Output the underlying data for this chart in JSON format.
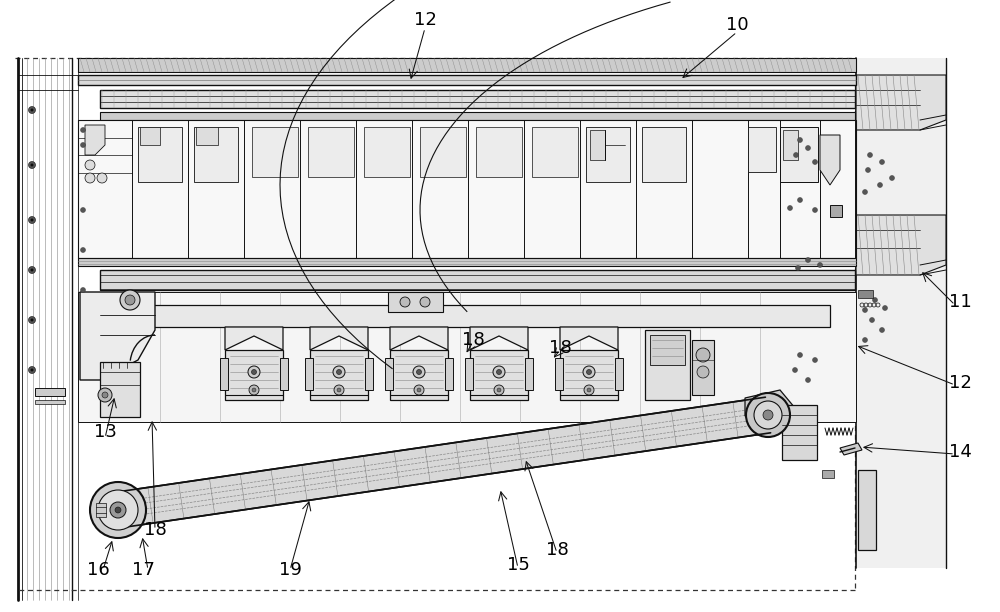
{
  "bg_color": "#ffffff",
  "lc": "#111111",
  "gray1": "#e8e8e8",
  "gray2": "#d0d0d0",
  "gray3": "#b8b8b8",
  "gray4": "#999999",
  "figsize": [
    10.0,
    6.12
  ],
  "dpi": 100,
  "ref_nums": [
    [
      "10",
      737,
      25
    ],
    [
      "12",
      425,
      20
    ],
    [
      "11",
      960,
      302
    ],
    [
      "12",
      960,
      383
    ],
    [
      "13",
      105,
      432
    ],
    [
      "14",
      960,
      452
    ],
    [
      "15",
      518,
      565
    ],
    [
      "16",
      98,
      570
    ],
    [
      "17",
      143,
      570
    ],
    [
      "18",
      155,
      530
    ],
    [
      "18",
      473,
      340
    ],
    [
      "18",
      560,
      348
    ],
    [
      "18",
      557,
      550
    ],
    [
      "19",
      290,
      570
    ]
  ]
}
